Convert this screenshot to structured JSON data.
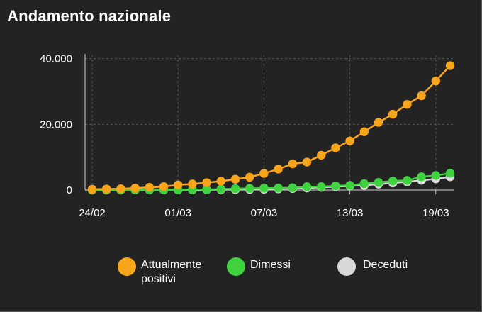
{
  "title": "Andamento nazionale",
  "chart_data": {
    "type": "line",
    "x": [
      "24/02",
      "25/02",
      "26/02",
      "27/02",
      "28/02",
      "29/02",
      "01/03",
      "02/03",
      "03/03",
      "04/03",
      "05/03",
      "06/03",
      "07/03",
      "08/03",
      "09/03",
      "10/03",
      "11/03",
      "12/03",
      "13/03",
      "14/03",
      "15/03",
      "16/03",
      "17/03",
      "18/03",
      "19/03",
      "20/03"
    ],
    "xticks": [
      "24/02",
      "01/03",
      "07/03",
      "13/03",
      "19/03"
    ],
    "yticks": [
      0,
      20000,
      40000
    ],
    "ytick_labels": [
      "0",
      "20.000",
      "40.000"
    ],
    "ylim": [
      0,
      41000
    ],
    "grid": true,
    "legend_position": "bottom",
    "series": [
      {
        "name": "Attualmente positivi",
        "color": "#f9a51a",
        "values": [
          221,
          311,
          385,
          588,
          821,
          1049,
          1577,
          1835,
          2263,
          2706,
          3296,
          3916,
          5061,
          6387,
          7985,
          8514,
          10590,
          12839,
          14955,
          17750,
          20603,
          23073,
          26062,
          28710,
          33190,
          37860
        ]
      },
      {
        "name": "Dimessi",
        "color": "#3ed23e",
        "values": [
          1,
          1,
          3,
          45,
          46,
          50,
          83,
          149,
          160,
          276,
          414,
          523,
          589,
          622,
          724,
          1004,
          1045,
          1258,
          1439,
          1966,
          2335,
          2749,
          2941,
          4025,
          4440,
          5129
        ]
      },
      {
        "name": "Deceduti",
        "color": "#d8d8d8",
        "values": [
          7,
          10,
          12,
          17,
          21,
          29,
          34,
          52,
          79,
          107,
          148,
          197,
          233,
          366,
          463,
          631,
          827,
          1016,
          1266,
          1441,
          1809,
          2158,
          2503,
          2978,
          3405,
          4032
        ]
      }
    ]
  },
  "legend": {
    "items": [
      {
        "label_line1": "Attualmente",
        "label_line2": "positivi",
        "color": "#f9a51a"
      },
      {
        "label_line1": "Dimessi",
        "label_line2": "",
        "color": "#3ed23e"
      },
      {
        "label_line1": "Deceduti",
        "label_line2": "",
        "color": "#d8d8d8"
      }
    ]
  }
}
